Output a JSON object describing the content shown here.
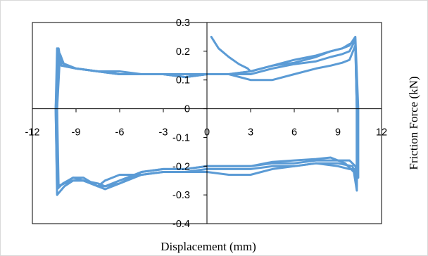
{
  "chart_data": {
    "type": "line",
    "xlabel": "Displacement (mm)",
    "ylabel": "Friction Force (kN)",
    "xlim": [
      -12,
      12
    ],
    "ylim": [
      -0.4,
      0.3
    ],
    "xticks": [
      "-12",
      "-9",
      "-6",
      "-3",
      "0",
      "3",
      "6",
      "9",
      "12"
    ],
    "yticks": [
      "0.3",
      "0.2",
      "0.1",
      "0",
      "-0.1",
      "-0.2",
      "-0.3",
      "-0.4"
    ],
    "grid": false,
    "legend": "none",
    "series_color": "#5b9bd5",
    "series": [
      {
        "x": [
          0.3,
          0.8,
          1.5,
          2.2,
          2.8,
          3.0
        ],
        "y": [
          0.25,
          0.21,
          0.18,
          0.155,
          0.14,
          0.13
        ]
      },
      {
        "x": [
          3.0,
          4.5,
          6.0,
          7.5,
          8.5,
          9.3,
          9.8,
          10.2,
          10.3,
          10.3,
          10.2,
          10.0,
          9.0,
          7.5,
          6.0,
          4.5,
          3.0,
          1.5,
          0.0,
          -1.5,
          -3.0,
          -4.5,
          -6.0,
          -7.0,
          -7.5,
          -8.5,
          -9.2,
          -9.9,
          -10.3,
          -10.4,
          -10.2,
          -10.0,
          -9.0,
          -7.5,
          -6.0,
          -4.5,
          -3.0,
          -1.5,
          0.0,
          1.5,
          3.0
        ],
        "y": [
          0.13,
          0.15,
          0.16,
          0.18,
          0.2,
          0.21,
          0.225,
          0.23,
          0.0,
          -0.27,
          -0.23,
          -0.2,
          -0.19,
          -0.19,
          -0.2,
          -0.2,
          -0.21,
          -0.21,
          -0.21,
          -0.22,
          -0.22,
          -0.23,
          -0.23,
          -0.25,
          -0.27,
          -0.25,
          -0.24,
          -0.26,
          -0.28,
          0.0,
          0.2,
          0.15,
          0.14,
          0.13,
          0.12,
          0.12,
          0.12,
          0.11,
          0.12,
          0.12,
          0.13
        ]
      },
      {
        "x": [
          3.0,
          4.5,
          6.0,
          7.5,
          8.5,
          9.3,
          9.8,
          10.2,
          10.3,
          10.3,
          10.1,
          9.5,
          8.5,
          7.5,
          6.0,
          4.5,
          3.0,
          1.5,
          0.0,
          -1.5,
          -3.0,
          -4.5,
          -6.0,
          -7.0,
          -7.5,
          -8.5,
          -9.2,
          -9.8,
          -10.3,
          -10.4,
          -10.3,
          -10.0,
          -9.0,
          -7.5,
          -6.0,
          -4.5,
          -3.0,
          -1.5,
          0.0,
          1.5,
          3.0
        ],
        "y": [
          0.12,
          0.14,
          0.155,
          0.165,
          0.18,
          0.19,
          0.2,
          0.24,
          0.0,
          -0.285,
          -0.22,
          -0.19,
          -0.17,
          -0.175,
          -0.18,
          -0.185,
          -0.2,
          -0.2,
          -0.2,
          -0.21,
          -0.21,
          -0.22,
          -0.25,
          -0.27,
          -0.27,
          -0.25,
          -0.25,
          -0.27,
          -0.3,
          0.0,
          0.21,
          0.16,
          0.14,
          0.13,
          0.12,
          0.12,
          0.12,
          0.11,
          0.12,
          0.12,
          0.12
        ]
      },
      {
        "x": [
          3.0,
          4.5,
          6.0,
          7.5,
          8.5,
          9.3,
          9.8,
          10.2,
          10.4,
          10.4,
          10.2,
          9.8,
          9.0,
          7.5,
          6.0,
          4.5,
          3.0,
          1.5,
          0.0,
          -1.5,
          -3.0,
          -4.5,
          -6.0,
          -7.0,
          -7.5,
          -8.5,
          -9.2,
          -9.8,
          -10.3,
          -10.3,
          -10.2,
          -10.0,
          -9.0,
          -7.5,
          -6.0,
          -4.5,
          -3.0,
          -1.5,
          0.0,
          1.5,
          3.0
        ],
        "y": [
          0.13,
          0.15,
          0.17,
          0.185,
          0.2,
          0.21,
          0.22,
          0.25,
          0.0,
          -0.24,
          -0.2,
          -0.18,
          -0.18,
          -0.18,
          -0.19,
          -0.19,
          -0.2,
          -0.2,
          -0.2,
          -0.21,
          -0.21,
          -0.22,
          -0.26,
          -0.28,
          -0.27,
          -0.24,
          -0.24,
          -0.26,
          -0.27,
          0.0,
          0.21,
          0.15,
          0.14,
          0.13,
          0.12,
          0.12,
          0.12,
          0.12,
          0.12,
          0.12,
          0.13
        ]
      },
      {
        "x": [
          3.0,
          4.5,
          6.0,
          7.5,
          8.5,
          9.3,
          9.8,
          10.2,
          10.3,
          10.3,
          10.2,
          9.8,
          9.0,
          7.5,
          6.0,
          4.5,
          3.0,
          1.5,
          0.0,
          -1.5,
          -3.0,
          -4.5,
          -6.0,
          -7.0,
          -7.5,
          -8.5,
          -9.2,
          -9.8,
          -10.2,
          -10.3,
          -10.1,
          -9.8,
          -9.0,
          -7.5,
          -6.0,
          -4.5,
          -3.0,
          -1.5,
          0.0,
          1.5,
          3.0
        ],
        "y": [
          0.1,
          0.1,
          0.12,
          0.14,
          0.15,
          0.16,
          0.17,
          0.22,
          0.0,
          -0.25,
          -0.21,
          -0.21,
          -0.2,
          -0.19,
          -0.2,
          -0.21,
          -0.23,
          -0.23,
          -0.22,
          -0.22,
          -0.22,
          -0.23,
          -0.26,
          -0.27,
          -0.26,
          -0.25,
          -0.25,
          -0.26,
          -0.27,
          0.0,
          0.19,
          0.15,
          0.14,
          0.13,
          0.13,
          0.12,
          0.12,
          0.11,
          0.12,
          0.12,
          0.1
        ]
      }
    ]
  }
}
